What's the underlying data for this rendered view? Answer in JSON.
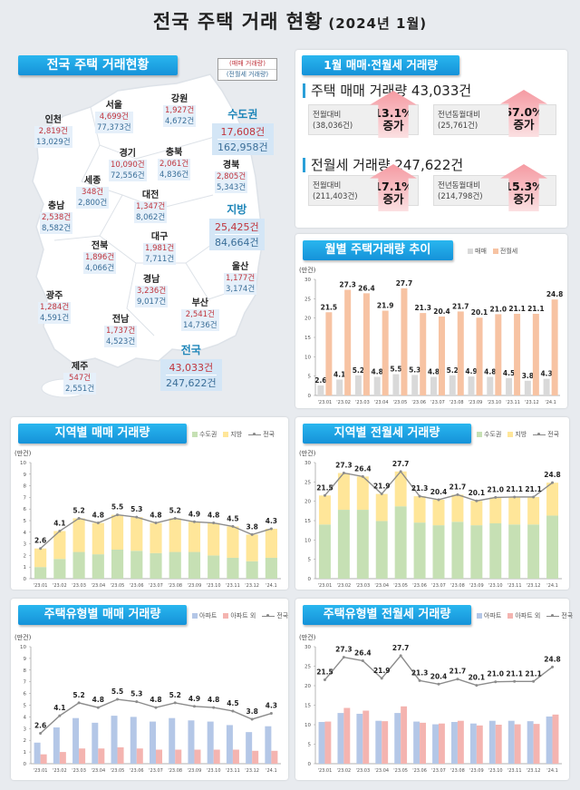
{
  "header": {
    "title": "전국 주택 거래 현황",
    "period": "(2024년 1월)"
  },
  "map": {
    "title": "전국 주택 거래현황",
    "key": {
      "sale": "(매매 거래량)",
      "lease": "(전월세 거래량)"
    },
    "regions": [
      {
        "name": "서울",
        "sale": "4,699건",
        "lease": "77,373건"
      },
      {
        "name": "강원",
        "sale": "1,927건",
        "lease": "4,672건"
      },
      {
        "name": "인천",
        "sale": "2,819건",
        "lease": "13,029건"
      },
      {
        "name": "경기",
        "sale": "10,090건",
        "lease": "72,556건"
      },
      {
        "name": "충북",
        "sale": "2,061건",
        "lease": "4,836건"
      },
      {
        "name": "경북",
        "sale": "2,805건",
        "lease": "5,343건"
      },
      {
        "name": "세종",
        "sale": "348건",
        "lease": "2,800건"
      },
      {
        "name": "대전",
        "sale": "1,347건",
        "lease": "8,062건"
      },
      {
        "name": "충남",
        "sale": "2,538건",
        "lease": "8,582건"
      },
      {
        "name": "대구",
        "sale": "1,981건",
        "lease": "7,711건"
      },
      {
        "name": "전북",
        "sale": "1,896건",
        "lease": "4,066건"
      },
      {
        "name": "울산",
        "sale": "1,177건",
        "lease": "3,174건"
      },
      {
        "name": "경남",
        "sale": "3,236건",
        "lease": "9,017건"
      },
      {
        "name": "광주",
        "sale": "1,284건",
        "lease": "4,591건"
      },
      {
        "name": "부산",
        "sale": "2,541건",
        "lease": "14,736건"
      },
      {
        "name": "전남",
        "sale": "1,737건",
        "lease": "4,523건"
      },
      {
        "name": "제주",
        "sale": "547건",
        "lease": "2,551건"
      }
    ],
    "summaries": [
      {
        "name": "수도권",
        "sale": "17,608건",
        "lease": "162,958건"
      },
      {
        "name": "지방",
        "sale": "25,425건",
        "lease": "84,664건"
      },
      {
        "name": "전국",
        "sale": "43,033건",
        "lease": "247,622건"
      }
    ]
  },
  "summary": {
    "title": "1월 매매·전월세 거래량",
    "sale": {
      "headline": "주택 매매 거래량 43,033건",
      "mom": {
        "label": "전월대비",
        "base": "(38,036건)",
        "pct": "13.1%",
        "dir": "증가"
      },
      "yoy": {
        "label": "전년동월대비",
        "base": "(25,761건)",
        "pct": "67.0%",
        "dir": "증가"
      }
    },
    "lease": {
      "headline": "전월세 거래량 247,622건",
      "mom": {
        "label": "전월대비",
        "base": "(211,403건)",
        "pct": "17.1%",
        "dir": "증가"
      },
      "yoy": {
        "label": "전년동월대비",
        "base": "(214,798건)",
        "pct": "15.3%",
        "dir": "증가"
      }
    }
  },
  "chart_data": [
    {
      "type": "bar",
      "title": "월별 주택거래량 추이",
      "ylabel": "(만건)",
      "ylim": [
        0,
        30
      ],
      "yticks": [
        0,
        5,
        10,
        15,
        20,
        25,
        30
      ],
      "mode": "grouped",
      "labels_on": "bars",
      "categories": [
        "'23.01",
        "'23.02",
        "'23.03",
        "'23.04",
        "'23.05",
        "'23.06",
        "'23.07",
        "'23.08",
        "'23.09",
        "'23.10",
        "'23.11",
        "'23.12",
        "'24.1"
      ],
      "series": [
        {
          "name": "매매",
          "color": "#d9d9d9",
          "values": [
            2.6,
            4.1,
            5.2,
            4.8,
            5.5,
            5.3,
            4.8,
            5.2,
            4.9,
            4.8,
            4.5,
            3.8,
            4.3
          ]
        },
        {
          "name": "전월세",
          "color": "#f7c3a3",
          "values": [
            21.5,
            27.3,
            26.4,
            21.9,
            27.7,
            21.3,
            20.4,
            21.7,
            20.1,
            21.0,
            21.1,
            21.1,
            24.8
          ]
        }
      ]
    },
    {
      "type": "bar",
      "title": "지역별 매매 거래량",
      "ylabel": "(만건)",
      "ylim": [
        0,
        10
      ],
      "yticks": [
        0,
        1,
        2,
        3,
        4,
        5,
        6,
        7,
        8,
        9,
        10
      ],
      "mode": "stacked",
      "categories": [
        "'23.01",
        "'23.02",
        "'23.03",
        "'23.04",
        "'23.05",
        "'23.06",
        "'23.07",
        "'23.08",
        "'23.09",
        "'23.10",
        "'23.11",
        "'23.12",
        "'24.1"
      ],
      "series": [
        {
          "name": "수도권",
          "color": "#c6e0b4",
          "values": [
            1.0,
            1.7,
            2.3,
            2.1,
            2.5,
            2.4,
            2.2,
            2.3,
            2.3,
            2.0,
            1.8,
            1.5,
            1.8
          ]
        },
        {
          "name": "지방",
          "color": "#ffe699",
          "values": [
            1.6,
            2.4,
            2.9,
            2.7,
            3.0,
            2.9,
            2.6,
            2.9,
            2.6,
            2.8,
            2.7,
            2.3,
            2.5
          ]
        }
      ],
      "line": {
        "name": "전국",
        "color": "#8c8c8c",
        "values": [
          2.6,
          4.1,
          5.2,
          4.8,
          5.5,
          5.3,
          4.8,
          5.2,
          4.9,
          4.8,
          4.5,
          3.8,
          4.3
        ]
      }
    },
    {
      "type": "bar",
      "title": "지역별 전월세 거래량",
      "ylabel": "(만건)",
      "ylim": [
        0,
        30
      ],
      "yticks": [
        0,
        5,
        10,
        15,
        20,
        25,
        30
      ],
      "mode": "stacked",
      "categories": [
        "'23.01",
        "'23.02",
        "'23.03",
        "'23.04",
        "'23.05",
        "'23.06",
        "'23.07",
        "'23.08",
        "'23.09",
        "'23.10",
        "'23.11",
        "'23.12",
        "'24.1"
      ],
      "series": [
        {
          "name": "수도권",
          "color": "#c6e0b4",
          "values": [
            14.0,
            17.8,
            17.8,
            14.9,
            18.7,
            14.5,
            13.8,
            14.7,
            13.8,
            14.3,
            14.0,
            14.0,
            16.3
          ]
        },
        {
          "name": "지방",
          "color": "#ffe699",
          "values": [
            7.5,
            9.5,
            8.6,
            7.0,
            9.0,
            6.8,
            6.6,
            7.0,
            6.3,
            6.7,
            7.1,
            7.1,
            8.5
          ]
        }
      ],
      "line": {
        "name": "전국",
        "color": "#8c8c8c",
        "values": [
          21.5,
          27.3,
          26.4,
          21.9,
          27.7,
          21.3,
          20.4,
          21.7,
          20.1,
          21.0,
          21.1,
          21.1,
          24.8
        ]
      }
    },
    {
      "type": "bar",
      "title": "주택유형별 매매 거래량",
      "ylabel": "(만건)",
      "ylim": [
        0,
        10
      ],
      "yticks": [
        0,
        1,
        2,
        3,
        4,
        5,
        6,
        7,
        8,
        9,
        10
      ],
      "mode": "grouped",
      "categories": [
        "'23.01",
        "'23.02",
        "'23.03",
        "'23.04",
        "'23.05",
        "'23.06",
        "'23.07",
        "'23.08",
        "'23.09",
        "'23.10",
        "'23.11",
        "'23.12",
        "'24.1"
      ],
      "series": [
        {
          "name": "아파트",
          "color": "#b4c7e7",
          "values": [
            1.8,
            3.1,
            3.9,
            3.5,
            4.1,
            4.0,
            3.6,
            3.9,
            3.7,
            3.6,
            3.3,
            2.7,
            3.2
          ]
        },
        {
          "name": "아파트 외",
          "color": "#f4b4b0",
          "values": [
            0.8,
            1.0,
            1.3,
            1.3,
            1.4,
            1.3,
            1.2,
            1.2,
            1.2,
            1.2,
            1.2,
            1.1,
            1.1
          ]
        }
      ],
      "line": {
        "name": "전국",
        "color": "#8c8c8c",
        "values": [
          2.6,
          4.1,
          5.2,
          4.8,
          5.5,
          5.3,
          4.8,
          5.2,
          4.9,
          4.8,
          4.5,
          3.8,
          4.3
        ]
      }
    },
    {
      "type": "bar",
      "title": "주택유형별 전월세 거래량",
      "ylabel": "(만건)",
      "ylim": [
        0,
        30
      ],
      "yticks": [
        0,
        5,
        10,
        15,
        20,
        25,
        30
      ],
      "mode": "grouped",
      "categories": [
        "'23.01",
        "'23.02",
        "'23.03",
        "'23.04",
        "'23.05",
        "'23.06",
        "'23.07",
        "'23.08",
        "'23.09",
        "'23.10",
        "'23.11",
        "'23.12",
        "'24.1"
      ],
      "series": [
        {
          "name": "아파트",
          "color": "#b4c7e7",
          "values": [
            10.7,
            13.0,
            12.8,
            11.0,
            13.0,
            10.8,
            10.1,
            10.7,
            10.3,
            11.0,
            11.0,
            10.9,
            12.1
          ]
        },
        {
          "name": "아파트 외",
          "color": "#f4b4b0",
          "values": [
            10.8,
            14.3,
            13.6,
            10.9,
            14.7,
            10.5,
            10.3,
            11.0,
            9.8,
            10.0,
            10.1,
            10.2,
            12.6
          ]
        }
      ],
      "line": {
        "name": "전국",
        "color": "#8c8c8c",
        "values": [
          21.5,
          27.3,
          26.4,
          21.9,
          27.7,
          21.3,
          20.4,
          21.7,
          20.1,
          21.0,
          21.1,
          21.1,
          24.8
        ]
      }
    }
  ]
}
